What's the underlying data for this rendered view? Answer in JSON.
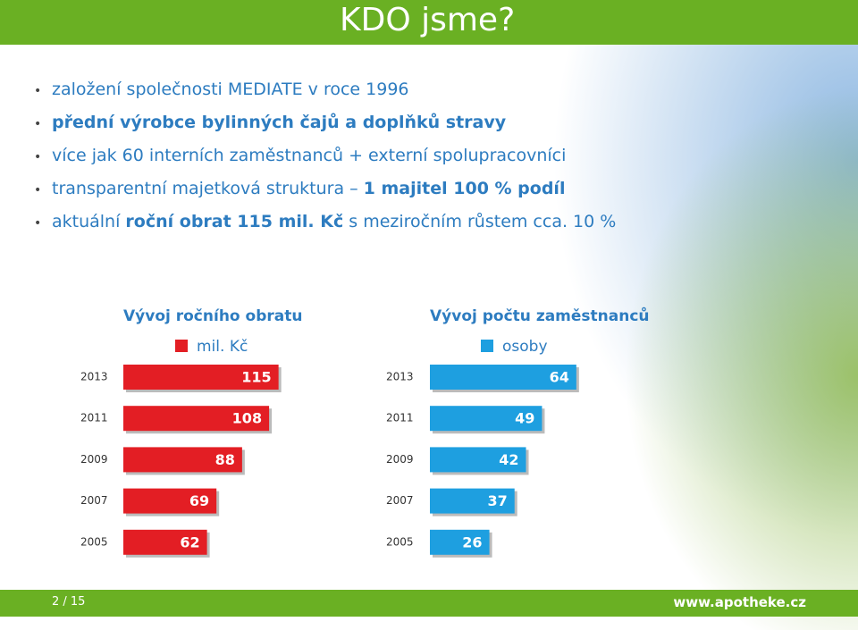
{
  "header": {
    "title": "KDO jsme?"
  },
  "bullets": [
    [
      {
        "text": "založení společnosti MEDIATE v roce 1996",
        "bold": false
      }
    ],
    [
      {
        "text": "přední výrobce bylinných čajů a doplňků stravy",
        "bold": true
      }
    ],
    [
      {
        "text": "více jak 60 interních zaměstnanců + externí spolupracovníci",
        "bold": false
      }
    ],
    [
      {
        "text": "transparentní majetková struktura – ",
        "bold": false
      },
      {
        "text": "1 majitel 100 % podíl",
        "bold": true
      }
    ],
    [
      {
        "text": "aktuální ",
        "bold": false
      },
      {
        "text": "roční obrat 115 mil. Kč",
        "bold": true
      },
      {
        "text": " s meziročním růstem cca. 10 %",
        "bold": false
      }
    ]
  ],
  "chart_data": [
    {
      "type": "bar",
      "title": "Vývoj ročního obratu",
      "categories": [
        "2013",
        "2011",
        "2009",
        "2007",
        "2005"
      ],
      "series": [
        {
          "name": "mil. Kč",
          "color": "#e31e24",
          "values": [
            115,
            108,
            88,
            69,
            62
          ]
        }
      ]
    },
    {
      "type": "bar",
      "title": "Vývoj počtu zaměstnanců",
      "categories": [
        "2013",
        "2011",
        "2009",
        "2007",
        "2005"
      ],
      "series": [
        {
          "name": "osoby",
          "color": "#1e9fe0",
          "values": [
            64,
            49,
            42,
            37,
            26
          ]
        }
      ]
    }
  ],
  "footer": {
    "page": "2 / 15",
    "url": "www.apotheke.cz"
  }
}
